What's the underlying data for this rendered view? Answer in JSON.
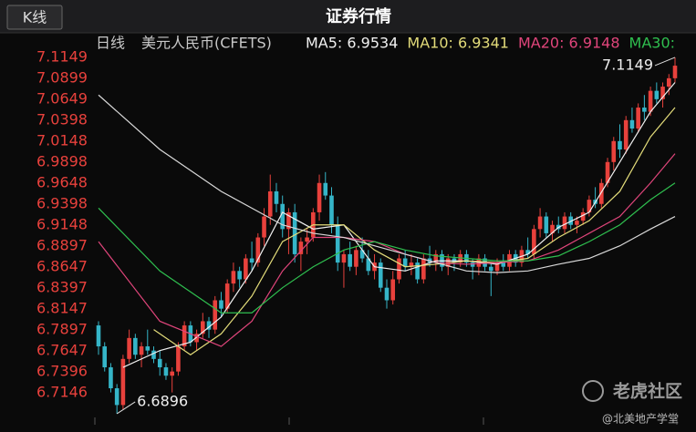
{
  "header": {
    "button": "K线",
    "title": "证券行情"
  },
  "chart_data": {
    "type": "candlestick",
    "period": "日线",
    "instrument": "美元人民币(CFETS)",
    "up_color": "#e8413c",
    "down_color": "#35b5c8",
    "ylim": [
      6.6852,
      7.1203
    ],
    "yticks": [
      7.1149,
      7.0899,
      7.0649,
      7.0398,
      7.0148,
      6.9898,
      6.9648,
      6.9398,
      6.9148,
      6.8897,
      6.8647,
      6.8397,
      6.8147,
      6.7897,
      6.7647,
      6.7396,
      6.7146
    ],
    "ohlc": [
      [
        6.795,
        6.8,
        6.76,
        6.77
      ],
      [
        6.77,
        6.775,
        6.74,
        6.745
      ],
      [
        6.745,
        6.75,
        6.715,
        6.72
      ],
      [
        6.72,
        6.725,
        6.6896,
        6.7
      ],
      [
        6.7,
        6.76,
        6.695,
        6.755
      ],
      [
        6.755,
        6.79,
        6.75,
        6.78
      ],
      [
        6.78,
        6.785,
        6.755,
        6.76
      ],
      [
        6.76,
        6.775,
        6.745,
        6.77
      ],
      [
        6.77,
        6.79,
        6.76,
        6.765
      ],
      [
        6.765,
        6.77,
        6.75,
        6.755
      ],
      [
        6.755,
        6.765,
        6.735,
        6.745
      ],
      [
        6.745,
        6.75,
        6.73,
        6.735
      ],
      [
        6.735,
        6.745,
        6.715,
        6.74
      ],
      [
        6.74,
        6.775,
        6.735,
        6.77
      ],
      [
        6.77,
        6.8,
        6.765,
        6.795
      ],
      [
        6.795,
        6.8,
        6.77,
        6.775
      ],
      [
        6.775,
        6.79,
        6.765,
        6.785
      ],
      [
        6.785,
        6.81,
        6.78,
        6.8
      ],
      [
        6.8,
        6.805,
        6.78,
        6.79
      ],
      [
        6.79,
        6.83,
        6.785,
        6.825
      ],
      [
        6.825,
        6.835,
        6.805,
        6.815
      ],
      [
        6.815,
        6.85,
        6.81,
        6.845
      ],
      [
        6.845,
        6.87,
        6.835,
        6.86
      ],
      [
        6.86,
        6.865,
        6.84,
        6.85
      ],
      [
        6.85,
        6.88,
        6.845,
        6.875
      ],
      [
        6.875,
        6.895,
        6.86,
        6.87
      ],
      [
        6.87,
        6.905,
        6.865,
        6.9
      ],
      [
        6.9,
        6.935,
        6.89,
        6.925
      ],
      [
        6.925,
        6.975,
        6.915,
        6.955
      ],
      [
        6.955,
        6.965,
        6.93,
        6.94
      ],
      [
        6.94,
        6.95,
        6.9,
        6.91
      ],
      [
        6.91,
        6.935,
        6.88,
        6.93
      ],
      [
        6.93,
        6.94,
        6.87,
        6.88
      ],
      [
        6.88,
        6.9,
        6.86,
        6.895
      ],
      [
        6.895,
        6.91,
        6.88,
        6.9
      ],
      [
        6.9,
        6.935,
        6.895,
        6.93
      ],
      [
        6.93,
        6.975,
        6.92,
        6.965
      ],
      [
        6.965,
        6.978,
        6.945,
        6.95
      ],
      [
        6.95,
        6.96,
        6.905,
        6.915
      ],
      [
        6.915,
        6.925,
        6.86,
        6.87
      ],
      [
        6.87,
        6.885,
        6.84,
        6.88
      ],
      [
        6.88,
        6.895,
        6.86,
        6.865
      ],
      [
        6.865,
        6.89,
        6.855,
        6.885
      ],
      [
        6.885,
        6.9,
        6.87,
        6.875
      ],
      [
        6.875,
        6.885,
        6.855,
        6.86
      ],
      [
        6.86,
        6.88,
        6.85,
        6.87
      ],
      [
        6.87,
        6.875,
        6.835,
        6.84
      ],
      [
        6.84,
        6.85,
        6.815,
        6.825
      ],
      [
        6.825,
        6.86,
        6.82,
        6.85
      ],
      [
        6.85,
        6.88,
        6.845,
        6.875
      ],
      [
        6.875,
        6.885,
        6.86,
        6.865
      ],
      [
        6.865,
        6.88,
        6.855,
        6.87
      ],
      [
        6.87,
        6.875,
        6.845,
        6.85
      ],
      [
        6.85,
        6.88,
        6.845,
        6.875
      ],
      [
        6.875,
        6.89,
        6.865,
        6.87
      ],
      [
        6.87,
        6.885,
        6.86,
        6.88
      ],
      [
        6.88,
        6.885,
        6.86,
        6.865
      ],
      [
        6.865,
        6.88,
        6.855,
        6.875
      ],
      [
        6.875,
        6.88,
        6.86,
        6.87
      ],
      [
        6.87,
        6.885,
        6.865,
        6.88
      ],
      [
        6.88,
        6.885,
        6.865,
        6.87
      ],
      [
        6.87,
        6.875,
        6.85,
        6.865
      ],
      [
        6.865,
        6.88,
        6.855,
        6.875
      ],
      [
        6.875,
        6.88,
        6.86,
        6.865
      ],
      [
        6.865,
        6.87,
        6.83,
        6.86
      ],
      [
        6.86,
        6.875,
        6.855,
        6.87
      ],
      [
        6.87,
        6.88,
        6.86,
        6.865
      ],
      [
        6.865,
        6.885,
        6.86,
        6.88
      ],
      [
        6.88,
        6.885,
        6.865,
        6.87
      ],
      [
        6.87,
        6.89,
        6.865,
        6.885
      ],
      [
        6.885,
        6.9,
        6.875,
        6.88
      ],
      [
        6.88,
        6.915,
        6.875,
        6.91
      ],
      [
        6.91,
        6.935,
        6.9,
        6.925
      ],
      [
        6.925,
        6.93,
        6.9,
        6.905
      ],
      [
        6.905,
        6.92,
        6.895,
        6.915
      ],
      [
        6.915,
        6.925,
        6.905,
        6.91
      ],
      [
        6.91,
        6.93,
        6.905,
        6.925
      ],
      [
        6.925,
        6.93,
        6.91,
        6.915
      ],
      [
        6.915,
        6.925,
        6.905,
        6.92
      ],
      [
        6.92,
        6.935,
        6.915,
        6.93
      ],
      [
        6.93,
        6.95,
        6.925,
        6.945
      ],
      [
        6.945,
        6.96,
        6.935,
        6.94
      ],
      [
        6.94,
        6.97,
        6.935,
        6.965
      ],
      [
        6.965,
        6.995,
        6.96,
        6.99
      ],
      [
        6.99,
        7.02,
        6.98,
        7.015
      ],
      [
        7.015,
        7.035,
        6.995,
        7.005
      ],
      [
        7.005,
        7.045,
        7.0,
        7.04
      ],
      [
        7.04,
        7.055,
        7.025,
        7.03
      ],
      [
        7.03,
        7.06,
        7.025,
        7.055
      ],
      [
        7.055,
        7.07,
        7.04,
        7.05
      ],
      [
        7.05,
        7.08,
        7.045,
        7.075
      ],
      [
        7.075,
        7.085,
        7.06,
        7.065
      ],
      [
        7.065,
        7.085,
        7.055,
        7.08
      ],
      [
        7.08,
        7.095,
        7.07,
        7.09
      ],
      [
        7.09,
        7.1149,
        7.085,
        7.105
      ]
    ],
    "series": [
      {
        "name": "MA5: 6.9534",
        "color": "#f0f0f0",
        "x": [
          4,
          10,
          15,
          20,
          25,
          30,
          35,
          40,
          45,
          50,
          55,
          60,
          65,
          70,
          75,
          80,
          85,
          90,
          94
        ],
        "values": [
          6.745,
          6.765,
          6.775,
          6.805,
          6.86,
          6.93,
          6.91,
          6.915,
          6.865,
          6.86,
          6.872,
          6.872,
          6.868,
          6.88,
          6.912,
          6.93,
          6.99,
          7.05,
          7.085
        ]
      },
      {
        "name": "MA10: 6.9341",
        "color": "#e3dc7a",
        "x": [
          9,
          15,
          20,
          25,
          30,
          35,
          40,
          45,
          50,
          55,
          60,
          65,
          70,
          75,
          80,
          85,
          90,
          94
        ],
        "values": [
          6.79,
          6.76,
          6.785,
          6.83,
          6.895,
          6.915,
          6.915,
          6.885,
          6.865,
          6.868,
          6.872,
          6.87,
          6.875,
          6.9,
          6.92,
          6.955,
          7.02,
          7.055
        ]
      },
      {
        "name": "MA20: 6.9148",
        "color": "#e0457b",
        "x": [
          0,
          10,
          20,
          25,
          30,
          35,
          40,
          45,
          50,
          55,
          60,
          65,
          70,
          75,
          80,
          85,
          90,
          94
        ],
        "values": [
          6.895,
          6.8,
          6.77,
          6.8,
          6.86,
          6.9,
          6.9,
          6.895,
          6.88,
          6.87,
          6.868,
          6.87,
          6.872,
          6.885,
          6.905,
          6.925,
          6.965,
          7.0
        ]
      },
      {
        "name": "MA30:",
        "color": "#2fbf4f",
        "x": [
          0,
          10,
          15,
          20,
          25,
          30,
          35,
          40,
          45,
          50,
          55,
          60,
          65,
          70,
          75,
          80,
          85,
          90,
          94
        ],
        "values": [
          6.935,
          6.86,
          6.835,
          6.81,
          6.81,
          6.84,
          6.865,
          6.885,
          6.895,
          6.885,
          6.878,
          6.875,
          6.872,
          6.872,
          6.878,
          6.895,
          6.915,
          6.945,
          6.965
        ]
      },
      {
        "color": "#d8d8d8",
        "x": [
          0,
          10,
          20,
          30,
          35,
          40,
          45,
          50,
          55,
          60,
          65,
          70,
          75,
          80,
          85,
          90,
          94
        ],
        "values": [
          7.07,
          7.005,
          6.955,
          6.915,
          6.905,
          6.9,
          6.89,
          6.88,
          6.87,
          6.86,
          6.858,
          6.86,
          6.868,
          6.875,
          6.89,
          6.91,
          6.925
        ]
      }
    ],
    "annotations": [
      {
        "label": "7.1149",
        "index": 94,
        "value": 7.1149
      },
      {
        "label": "6.6896",
        "index": 3,
        "value": 6.6896
      }
    ]
  },
  "watermark": {
    "brand": "老虎社区",
    "author": "@北美地产学堂"
  }
}
